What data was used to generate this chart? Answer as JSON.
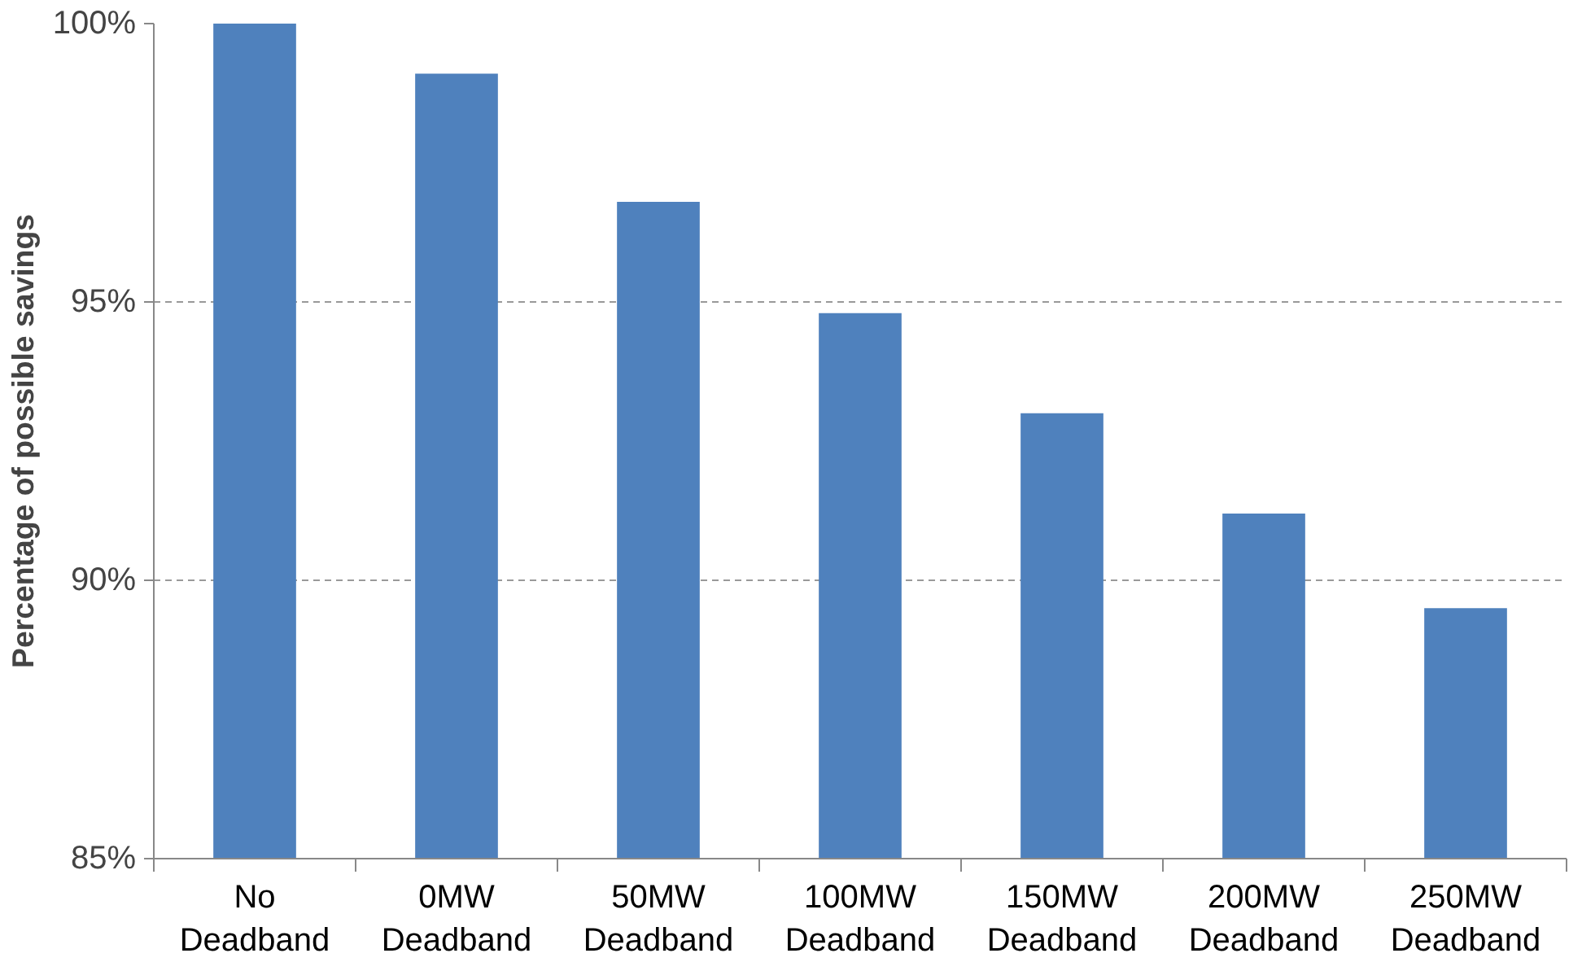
{
  "chart_data": {
    "type": "bar",
    "ylabel": "Percentage of possible savings",
    "categories": [
      "No\nDeadband",
      "0MW\nDeadband",
      "50MW\nDeadband",
      "100MW\nDeadband",
      "150MW\nDeadband",
      "200MW\nDeadband",
      "250MW\nDeadband"
    ],
    "values": [
      100,
      99.1,
      96.8,
      94.8,
      93.0,
      91.2,
      89.5
    ],
    "color": "#4f81bd",
    "ylim": [
      85,
      100
    ],
    "yticks": [
      {
        "value": 85,
        "label": "85%"
      },
      {
        "value": 90,
        "label": "90%"
      },
      {
        "value": 95,
        "label": "95%"
      },
      {
        "value": 100,
        "label": "100%"
      }
    ],
    "grid": "y"
  }
}
